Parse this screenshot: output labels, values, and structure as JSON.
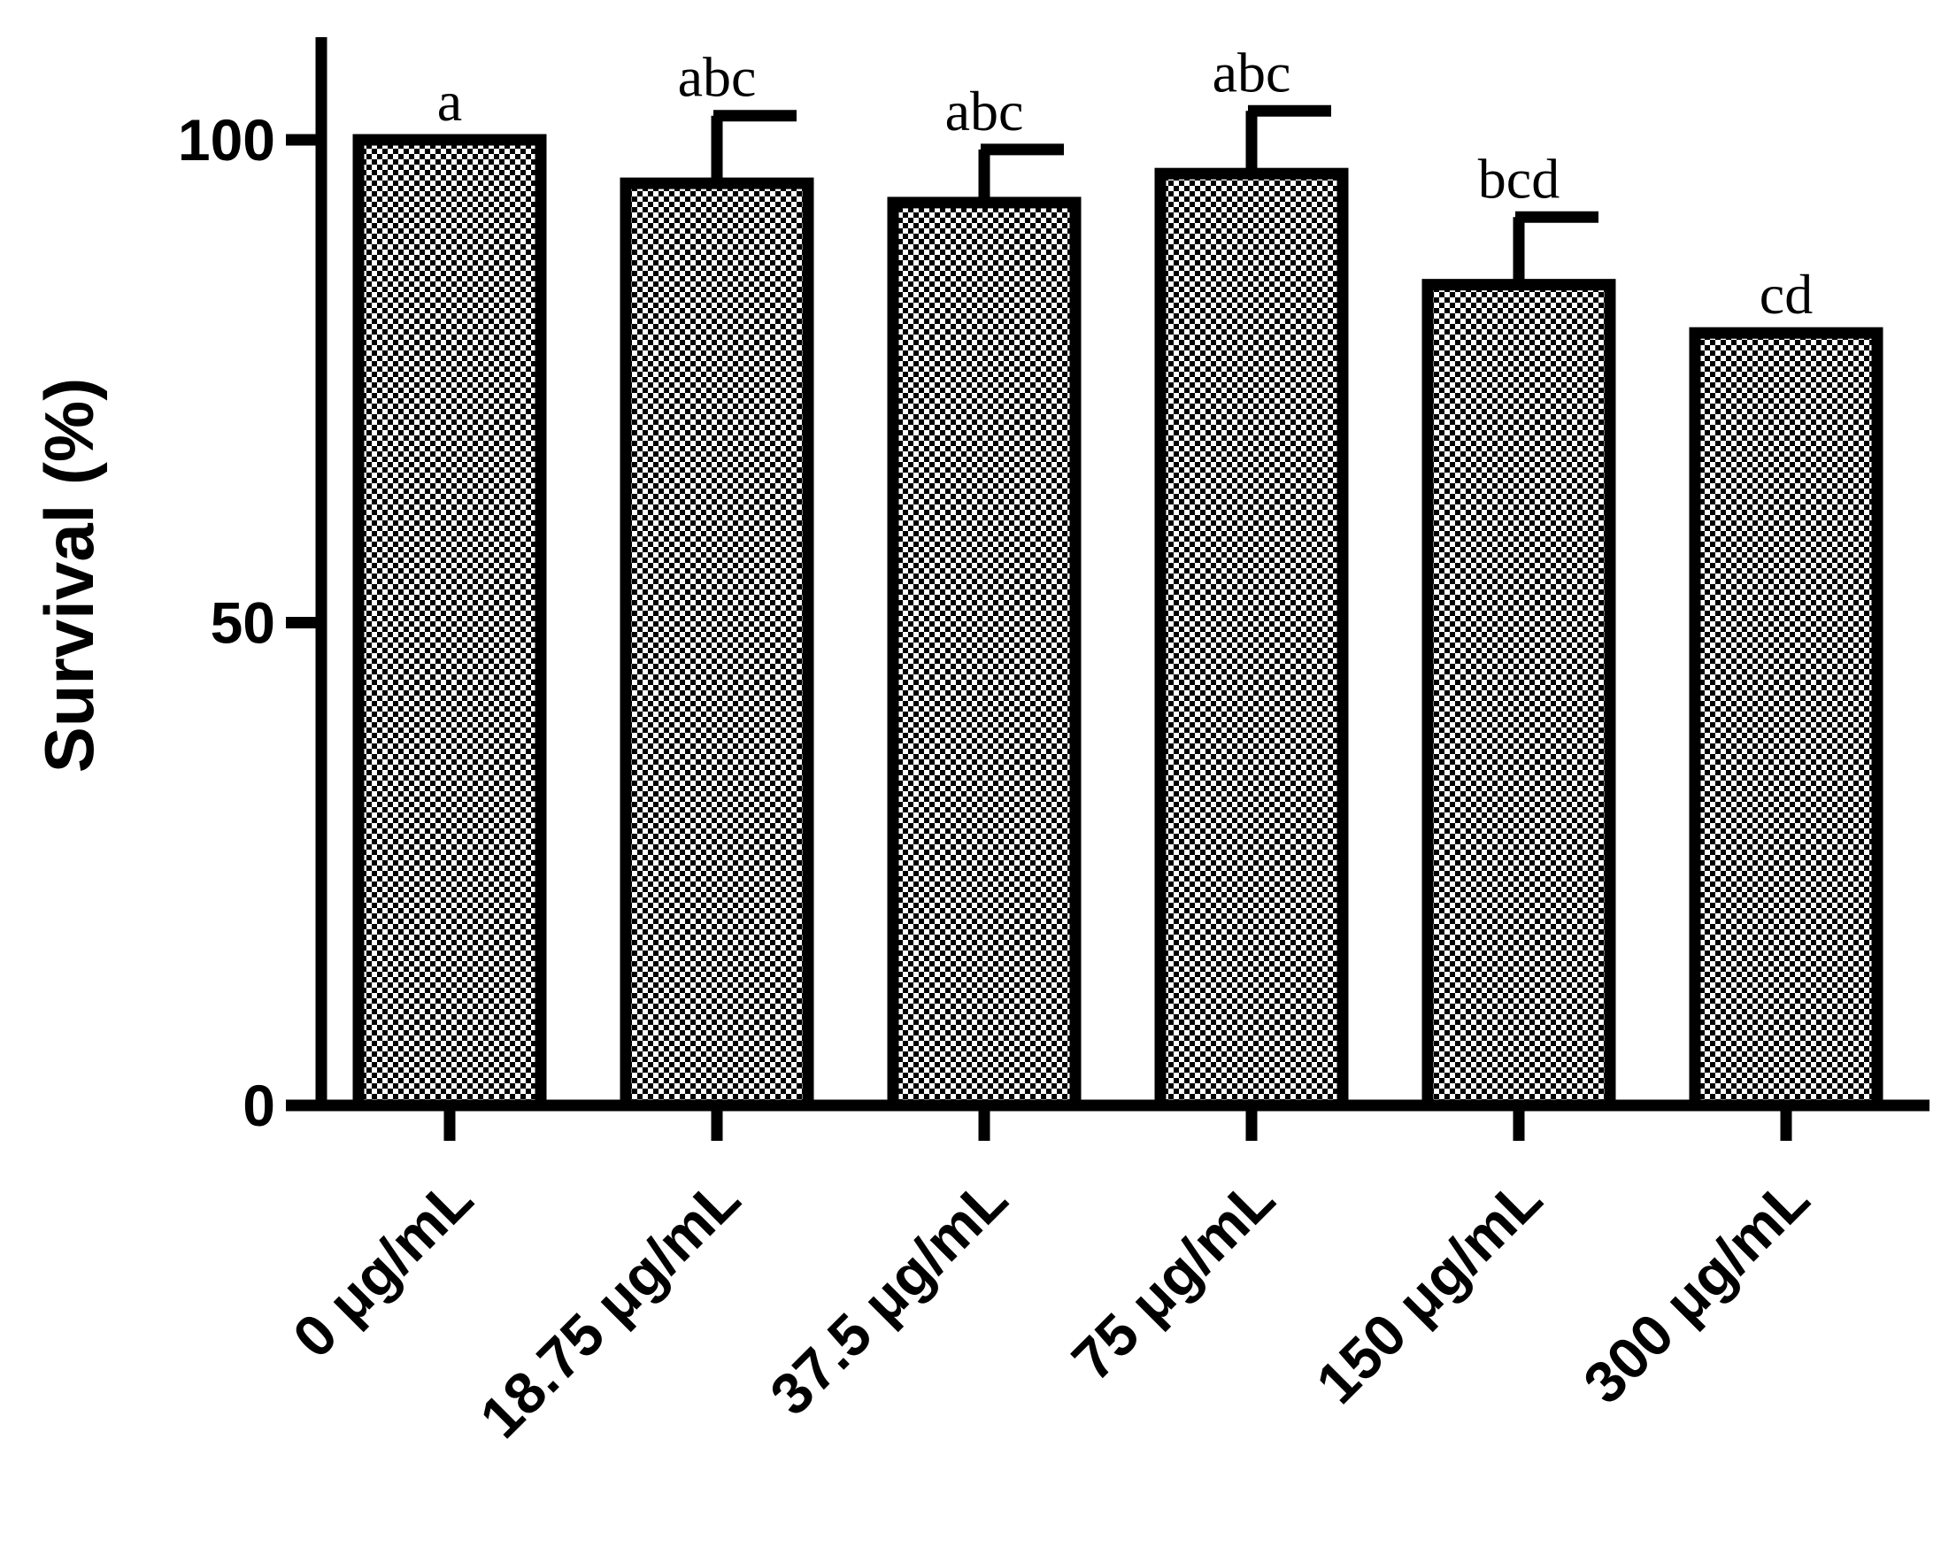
{
  "chart_data": {
    "type": "bar",
    "title": "",
    "xlabel": "",
    "ylabel": "Survival (%)",
    "ylim": [
      0,
      112
    ],
    "yticks": [
      0,
      50,
      100
    ],
    "grid": false,
    "legend": "none",
    "categories": [
      "0 μg/mL",
      "18.75 μg/mL",
      "37.5 μg/mL",
      "75 μg/mL",
      "150 μg/mL",
      "300 μg/mL"
    ],
    "values": [
      100,
      95.5,
      93.5,
      96.5,
      85,
      80
    ],
    "errors": [
      0,
      7,
      5.5,
      6.5,
      7,
      0
    ],
    "significance_labels": [
      "a",
      "abc",
      "abc",
      "abc",
      "bcd",
      "cd"
    ],
    "bar_pattern": "checkerboard",
    "colors": {
      "bar_outline": "#000000",
      "pattern_dark": "#000000",
      "pattern_light": "#ffffff",
      "axis": "#000000"
    }
  }
}
